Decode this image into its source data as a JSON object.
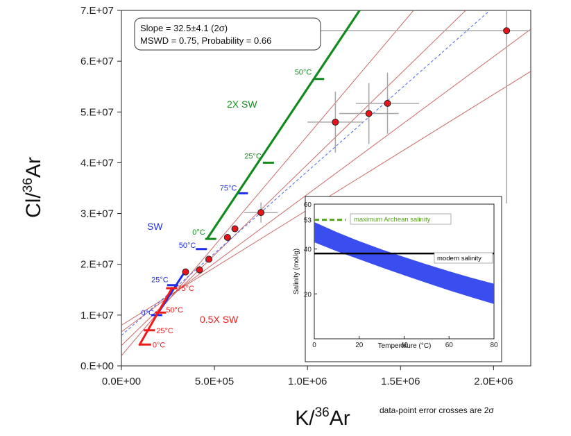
{
  "chart_data": [
    {
      "type": "scatter",
      "xlabel": "K/36Ar",
      "ylabel": "Cl/36Ar",
      "xlim": [
        0,
        2200000
      ],
      "ylim": [
        0,
        70000000
      ],
      "x_ticks": [
        0,
        500000,
        1000000,
        1500000,
        2000000
      ],
      "x_tick_labels": [
        "0.0E+00",
        "5.0E+05",
        "1.0E+06",
        "1.5E+06",
        "2.0E+06"
      ],
      "y_ticks": [
        0,
        10000000,
        20000000,
        30000000,
        40000000,
        50000000,
        60000000,
        70000000
      ],
      "y_tick_labels": [
        "0.E+00",
        "1.E+07",
        "2.E+07",
        "3.E+07",
        "4.E+07",
        "5.E+07",
        "6.E+07",
        "7.E+07"
      ],
      "stats_box": {
        "line1": "Slope = 32.5±4.1 (2σ)",
        "line2": "MSWD = 0.75,  Probability = 0.66"
      },
      "footnote": "data-point error crosses are 2σ",
      "colors": {
        "points": "#e8141c",
        "envelope": "#c0504d",
        "regression": "#4a63e8",
        "sw": "#1f2ee8",
        "sw2x": "#138a1d",
        "sw05x": "#f01a1a",
        "errorbars": "#a6a6a6"
      },
      "points": [
        {
          "x": 345000,
          "y": 18500000
        },
        {
          "x": 420000,
          "y": 18900000
        },
        {
          "x": 470000,
          "y": 21000000
        },
        {
          "x": 570000,
          "y": 25300000
        },
        {
          "x": 610000,
          "y": 27000000
        },
        {
          "x": 750000,
          "y": 30200000,
          "xerr": 90000,
          "yerr": 2000000
        },
        {
          "x": 1150000,
          "y": 48000000,
          "xerr": 150000,
          "yerr": 6000000
        },
        {
          "x": 1330000,
          "y": 49700000,
          "xerr": 160000,
          "yerr": 6000000
        },
        {
          "x": 1430000,
          "y": 51700000,
          "xerr": 170000,
          "yerr": 6000000
        },
        {
          "x": 2070000,
          "y": 66000000,
          "xerr": 1150000,
          "yerr": 34000000
        }
      ],
      "regression_line": {
        "x": [
          0,
          1980000
        ],
        "y": [
          6000000,
          70000000
        ]
      },
      "envelope_lines": [
        {
          "x": [
            0,
            1850000
          ],
          "y": [
            4000000,
            70000000
          ]
        },
        {
          "x": [
            0,
            2200000
          ],
          "y": [
            6700000,
            66300000
          ]
        },
        {
          "x": [
            0,
            2200000
          ],
          "y": [
            8000000,
            58000000
          ]
        },
        {
          "x": [
            0,
            1570000
          ],
          "y": [
            2000000,
            70000000
          ]
        }
      ],
      "series": [
        {
          "name": "SW",
          "line": {
            "x": [
              190000,
              340000
            ],
            "y": [
              10000000,
              18500000
            ]
          },
          "markers": [
            {
              "label": "0°C",
              "x": 190000,
              "y": 10000000
            },
            {
              "label": "25°C",
              "x": 275000,
              "y": 15900000
            },
            {
              "label": "50°C",
              "x": 430000,
              "y": 23000000
            },
            {
              "label": "75°C",
              "x": 650000,
              "y": 34000000
            }
          ]
        },
        {
          "name": "2X SW",
          "line": {
            "x": [
              460000,
              1280000
            ],
            "y": [
              25000000,
              70000000
            ]
          },
          "markers": [
            {
              "label": "0°C",
              "x": 480000,
              "y": 25000000
            },
            {
              "label": "25°C",
              "x": 790000,
              "y": 40000000
            },
            {
              "label": "50°C",
              "x": 1060000,
              "y": 56500000
            }
          ]
        },
        {
          "name": "0.5X SW",
          "line": {
            "x": [
              95000,
              275000
            ],
            "y": [
              4000000,
              15500000
            ]
          },
          "markers": [
            {
              "label": "0°C",
              "x": 130000,
              "y": 4200000
            },
            {
              "label": "25°C",
              "x": 150000,
              "y": 7000000
            },
            {
              "label": "50°C",
              "x": 210000,
              "y": 10500000
            },
            {
              "label": "75°C",
              "x": 270000,
              "y": 15300000
            }
          ]
        }
      ]
    },
    {
      "type": "area",
      "xlabel": "Temperature (°C)",
      "ylabel": "Salinity (mol/g)",
      "xlim": [
        0,
        80
      ],
      "ylim": [
        0,
        60
      ],
      "x_ticks": [
        0,
        20,
        40,
        60,
        80
      ],
      "y_ticks": [
        20,
        40,
        60
      ],
      "extra_y_label": "53",
      "band": {
        "x": [
          0,
          10,
          20,
          30,
          40,
          50,
          60,
          70,
          80
        ],
        "upper": [
          52,
          47.5,
          43.5,
          39.8,
          36.4,
          33.2,
          30.1,
          27.2,
          24.5
        ],
        "lower": [
          43,
          39,
          35.4,
          31.8,
          28.3,
          24.9,
          21.6,
          18.5,
          15.5
        ]
      },
      "reference_lines": [
        {
          "name": "maximum Archean salinity",
          "y": 53,
          "style": "dashed",
          "color": "#55a51c"
        },
        {
          "name": "modern salinity",
          "y": 38,
          "style": "solid",
          "color": "#000000"
        }
      ],
      "band_color": "#3a4ef0"
    }
  ]
}
